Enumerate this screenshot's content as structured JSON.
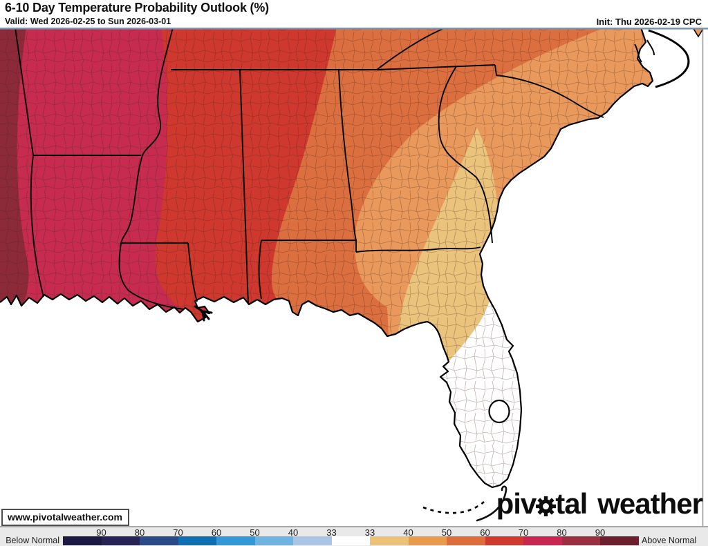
{
  "header": {
    "title": "6-10 Day Temperature Probability Outlook (%)",
    "valid": "Valid: Wed 2026-02-25 to Sun 2026-03-01",
    "init": "Init: Thu 2026-02-19 CPC"
  },
  "watermark": "www.pivotalweather.com",
  "logo": {
    "part1": "piv",
    "part2": "tal",
    "part3": "weather"
  },
  "legend": {
    "below_label": "Below Normal",
    "above_label": "Above Normal",
    "tick_values": [
      "90",
      "80",
      "70",
      "60",
      "50",
      "40",
      "33",
      "33",
      "40",
      "50",
      "60",
      "70",
      "80",
      "90"
    ],
    "below_colors": [
      "#1a1a42",
      "#262457",
      "#2c4a86",
      "#0e6fb3",
      "#3399d6",
      "#6fb3e0",
      "#a9c7e4"
    ],
    "middle_color": "#ffffff",
    "above_colors": [
      "#ecc376",
      "#ea9a4b",
      "#dd6e3c",
      "#d03a2e",
      "#c92751",
      "#9c2f3f",
      "#6d1f2d"
    ]
  },
  "map": {
    "ocean": "#ffffff",
    "bands": {
      "b33": "#ffffff",
      "b40": "#eac37c",
      "b50": "#e9995b",
      "b60": "#dc6f3f",
      "b70": "#cf382e",
      "b80": "#c72c50",
      "b90": "#8d2a3a"
    }
  }
}
